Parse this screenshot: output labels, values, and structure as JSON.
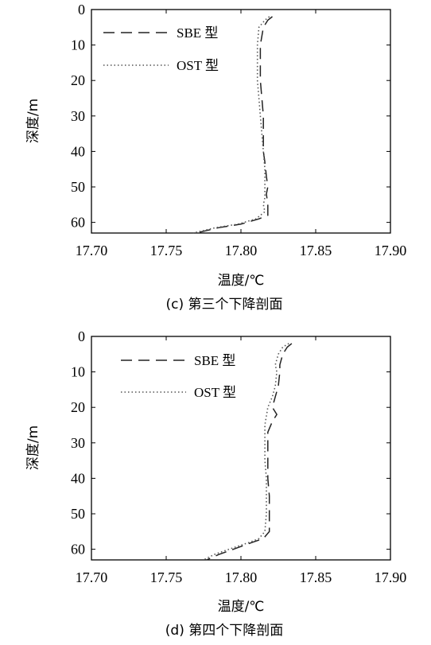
{
  "chart_data": [
    {
      "type": "line",
      "caption": "(c) 第三个下降剖面",
      "xlabel": "温度/℃",
      "ylabel": "深度/m",
      "xlim": [
        17.7,
        17.9
      ],
      "ylim": [
        0,
        63
      ],
      "y_inverted": true,
      "xticks": [
        "17.70",
        "17.75",
        "17.80",
        "17.85",
        "17.90"
      ],
      "yticks": [
        "0",
        "10",
        "20",
        "30",
        "40",
        "50",
        "60"
      ],
      "grid": false,
      "legend_position": "top-left",
      "series": [
        {
          "name": "SBE 型",
          "style": "dashed",
          "x": [
            17.821,
            17.818,
            17.815,
            17.813,
            17.813,
            17.814,
            17.815,
            17.815,
            17.815,
            17.816,
            17.817,
            17.818,
            17.817,
            17.818,
            17.818,
            17.818,
            17.812,
            17.8,
            17.785,
            17.775,
            17.77
          ],
          "y": [
            2,
            3,
            5,
            10,
            20,
            25,
            30,
            35,
            40,
            43,
            47,
            50,
            52,
            55,
            57,
            58,
            59,
            60.5,
            61.5,
            62.5,
            63
          ]
        },
        {
          "name": "OST 型",
          "style": "dotted",
          "x": [
            17.819,
            17.816,
            17.812,
            17.811,
            17.811,
            17.812,
            17.813,
            17.814,
            17.815,
            17.816,
            17.816,
            17.816,
            17.815,
            17.816,
            17.81,
            17.798,
            17.783,
            17.773,
            17.768
          ],
          "y": [
            2,
            3,
            5,
            10,
            20,
            25,
            30,
            35,
            40,
            45,
            50,
            53,
            55,
            57,
            59,
            60.5,
            61.5,
            62.5,
            63
          ]
        }
      ]
    },
    {
      "type": "line",
      "caption": "(d) 第四个下降剖面",
      "xlabel": "温度/℃",
      "ylabel": "深度/m",
      "xlim": [
        17.7,
        17.9
      ],
      "ylim": [
        0,
        63
      ],
      "y_inverted": true,
      "xticks": [
        "17.70",
        "17.75",
        "17.80",
        "17.85",
        "17.90"
      ],
      "yticks": [
        "0",
        "10",
        "20",
        "30",
        "40",
        "50",
        "60"
      ],
      "grid": false,
      "legend_position": "top-left",
      "series": [
        {
          "name": "SBE 型",
          "style": "dashed",
          "x": [
            17.834,
            17.831,
            17.828,
            17.826,
            17.826,
            17.825,
            17.823,
            17.821,
            17.824,
            17.821,
            17.818,
            17.818,
            17.818,
            17.818,
            17.819,
            17.819,
            17.819,
            17.815,
            17.808,
            17.795,
            17.785,
            17.777
          ],
          "y": [
            2,
            3,
            5,
            8,
            10,
            14,
            17,
            20,
            22,
            24,
            27,
            30,
            35,
            40,
            45,
            50,
            55,
            57,
            58,
            60,
            61.5,
            63
          ]
        },
        {
          "name": "OST 型",
          "style": "dotted",
          "x": [
            17.832,
            17.828,
            17.825,
            17.823,
            17.824,
            17.823,
            17.821,
            17.818,
            17.816,
            17.816,
            17.816,
            17.817,
            17.817,
            17.817,
            17.816,
            17.812,
            17.806,
            17.792,
            17.782,
            17.775
          ],
          "y": [
            2,
            3,
            5,
            8,
            10,
            14,
            17,
            20,
            25,
            30,
            35,
            40,
            45,
            50,
            55,
            57,
            58,
            60,
            61.5,
            63
          ]
        }
      ]
    }
  ]
}
